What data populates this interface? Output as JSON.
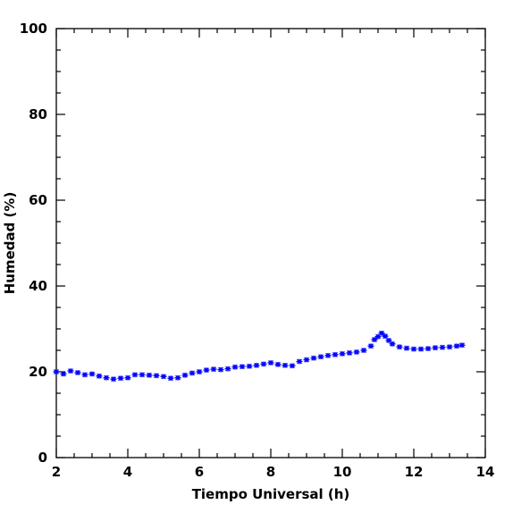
{
  "chart_data": {
    "type": "scatter",
    "title": "",
    "xlabel": "Tiempo Universal (h)",
    "ylabel": "Humedad (%)",
    "xlim": [
      2,
      14
    ],
    "ylim": [
      0,
      100
    ],
    "xticks": [
      2,
      4,
      6,
      8,
      10,
      12,
      14
    ],
    "yticks": [
      0,
      20,
      40,
      60,
      80,
      100
    ],
    "xticks_minor_step": 0.5,
    "yticks_minor_step": 5,
    "grid": false,
    "marker": "asterisk",
    "series": [
      {
        "color": "#0000ff",
        "x": [
          2.0,
          2.2,
          2.4,
          2.6,
          2.8,
          3.0,
          3.2,
          3.4,
          3.6,
          3.8,
          4.0,
          4.2,
          4.4,
          4.6,
          4.8,
          5.0,
          5.2,
          5.4,
          5.6,
          5.8,
          6.0,
          6.2,
          6.4,
          6.6,
          6.8,
          7.0,
          7.2,
          7.4,
          7.6,
          7.8,
          8.0,
          8.2,
          8.4,
          8.6,
          8.8,
          9.0,
          9.2,
          9.4,
          9.6,
          9.8,
          10.0,
          10.2,
          10.4,
          10.6,
          10.8,
          10.9,
          11.0,
          11.1,
          11.2,
          11.3,
          11.4,
          11.6,
          11.8,
          12.0,
          12.2,
          12.4,
          12.6,
          12.8,
          13.0,
          13.2,
          13.35
        ],
        "y": [
          20.0,
          19.5,
          20.2,
          19.8,
          19.3,
          19.5,
          19.0,
          18.6,
          18.3,
          18.5,
          18.6,
          19.3,
          19.3,
          19.2,
          19.1,
          18.9,
          18.5,
          18.6,
          19.2,
          19.7,
          20.0,
          20.4,
          20.6,
          20.5,
          20.7,
          21.1,
          21.2,
          21.3,
          21.5,
          21.8,
          22.1,
          21.7,
          21.5,
          21.4,
          22.4,
          22.8,
          23.2,
          23.5,
          23.8,
          24.0,
          24.2,
          24.4,
          24.6,
          25.0,
          26.0,
          27.5,
          28.2,
          29.0,
          28.3,
          27.3,
          26.5,
          25.8,
          25.5,
          25.3,
          25.3,
          25.4,
          25.6,
          25.7,
          25.8,
          26.0,
          26.2
        ]
      }
    ]
  }
}
